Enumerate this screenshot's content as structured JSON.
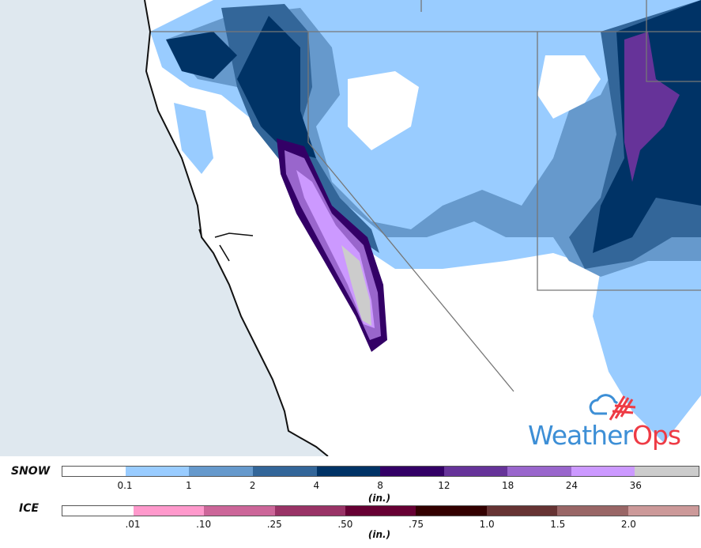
{
  "map": {
    "colors": {
      "ocean": "#dfe8ef",
      "land": "#ffffff",
      "borders": "#777777",
      "coast": "#111111"
    }
  },
  "logo": {
    "part1": "Weather",
    "part2": "Ops",
    "colors": {
      "blue": "#3d8fd6",
      "red": "#ee3b45"
    }
  },
  "legend": {
    "snow": {
      "label": "SNOW",
      "unit": "(in.)",
      "colors": [
        "#ffffff",
        "#99ccff",
        "#6699cc",
        "#336699",
        "#003366",
        "#330066",
        "#663399",
        "#9966cc",
        "#cc99ff",
        "#cccccc"
      ],
      "ticks": [
        "0.1",
        "1",
        "2",
        "4",
        "8",
        "12",
        "18",
        "24",
        "36"
      ]
    },
    "ice": {
      "label": "ICE",
      "unit": "(in.)",
      "colors": [
        "#ffffff",
        "#ff99cc",
        "#cc6699",
        "#993366",
        "#660033",
        "#330000",
        "#663333",
        "#996666",
        "#cc9999"
      ],
      "ticks": [
        ".01",
        ".10",
        ".25",
        ".50",
        ".75",
        "1.0",
        "1.5",
        "2.0"
      ]
    }
  }
}
